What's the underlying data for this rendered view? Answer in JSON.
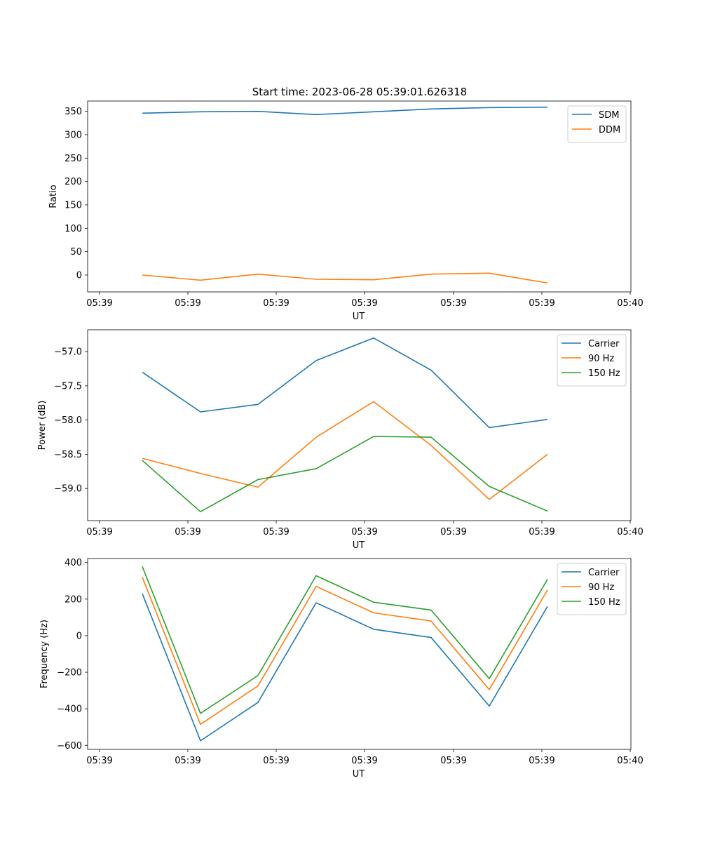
{
  "figure_title": "Start time: 2023-06-28 05:39:01.626318",
  "chart_data": [
    {
      "type": "line",
      "title": "Start time: 2023-06-28 05:39:01.626318",
      "xlabel": "UT",
      "ylabel": "Ratio",
      "x": [
        1,
        2,
        3,
        4,
        5,
        6,
        7,
        8
      ],
      "x_tick_labels": [
        "05:39",
        "05:39",
        "05:39",
        "05:39",
        "05:39",
        "05:39",
        "05:40"
      ],
      "y_ticks": [
        0,
        50,
        100,
        150,
        200,
        250,
        300,
        350
      ],
      "y_tick_labels": [
        "0",
        "50",
        "100",
        "150",
        "200",
        "250",
        "300",
        "350"
      ],
      "ylim": [
        -36,
        372
      ],
      "legend": "upper right",
      "series": [
        {
          "name": "SDM",
          "color": "#1f77b4",
          "values": [
            346,
            349,
            350,
            343,
            349,
            355,
            358,
            359
          ]
        },
        {
          "name": "DDM",
          "color": "#ff7f0e",
          "values": [
            0,
            -11,
            2,
            -9,
            -10,
            2,
            4,
            -17
          ]
        }
      ]
    },
    {
      "type": "line",
      "xlabel": "UT",
      "ylabel": "Power (dB)",
      "x": [
        1,
        2,
        3,
        4,
        5,
        6,
        7,
        8
      ],
      "x_tick_labels": [
        "05:39",
        "05:39",
        "05:39",
        "05:39",
        "05:39",
        "05:39",
        "05:40"
      ],
      "y_ticks": [
        -59.0,
        -58.5,
        -58.0,
        -57.5,
        -57.0
      ],
      "y_tick_labels": [
        "−59.0",
        "−58.5",
        "−58.0",
        "−57.5",
        "−57.0"
      ],
      "ylim": [
        -59.47,
        -56.68
      ],
      "legend": "upper right",
      "series": [
        {
          "name": "Carrier",
          "color": "#1f77b4",
          "values": [
            -57.3,
            -57.88,
            -57.77,
            -57.13,
            -56.8,
            -57.27,
            -58.11,
            -57.99
          ]
        },
        {
          "name": "90 Hz",
          "color": "#ff7f0e",
          "values": [
            -58.56,
            -58.78,
            -58.98,
            -58.25,
            -57.73,
            -58.37,
            -59.16,
            -58.5
          ]
        },
        {
          "name": "150 Hz",
          "color": "#2ca02c",
          "values": [
            -58.59,
            -59.34,
            -58.87,
            -58.71,
            -58.24,
            -58.25,
            -58.97,
            -59.33
          ]
        }
      ]
    },
    {
      "type": "line",
      "xlabel": "UT",
      "ylabel": "Frequency (Hz)",
      "x": [
        1,
        2,
        3,
        4,
        5,
        6,
        7,
        8
      ],
      "x_tick_labels": [
        "05:39",
        "05:39",
        "05:39",
        "05:39",
        "05:39",
        "05:39",
        "05:40"
      ],
      "y_ticks": [
        -600,
        -400,
        -200,
        0,
        200,
        400
      ],
      "y_tick_labels": [
        "−600",
        "−400",
        "−200",
        "0",
        "200",
        "400"
      ],
      "ylim": [
        -622,
        422
      ],
      "legend": "upper right",
      "series": [
        {
          "name": "Carrier",
          "color": "#1f77b4",
          "values": [
            230,
            -575,
            -365,
            180,
            35,
            -10,
            -385,
            160
          ]
        },
        {
          "name": "90 Hz",
          "color": "#ff7f0e",
          "values": [
            320,
            -485,
            -275,
            270,
            125,
            80,
            -295,
            250
          ]
        },
        {
          "name": "150 Hz",
          "color": "#2ca02c",
          "values": [
            378,
            -425,
            -218,
            328,
            183,
            140,
            -235,
            308
          ]
        }
      ]
    }
  ]
}
